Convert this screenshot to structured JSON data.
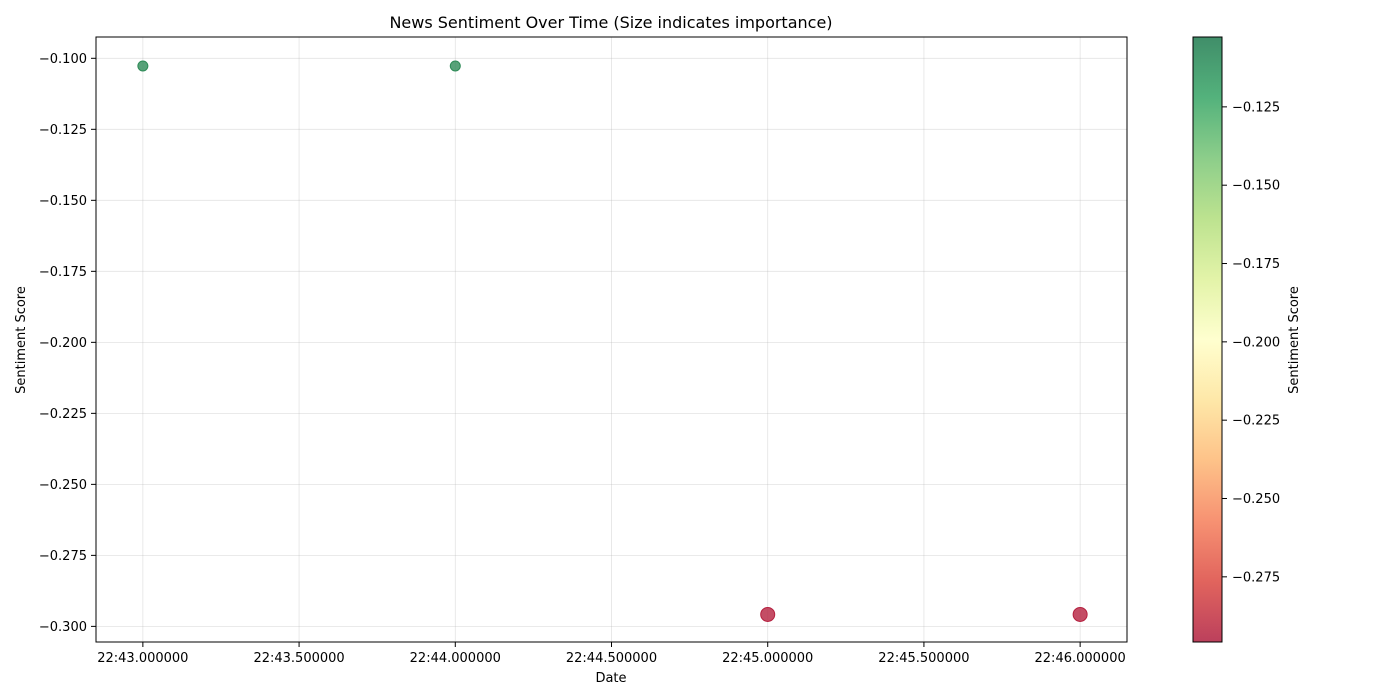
{
  "chart_data": {
    "type": "scatter",
    "title": "News Sentiment Over Time (Size indicates importance)",
    "xlabel": "Date",
    "ylabel": "Sentiment Score",
    "x_ticks": [
      "22:43.000000",
      "22:43.500000",
      "22:44.000000",
      "22:44.500000",
      "22:45.000000",
      "22:45.500000",
      "22:46.000000"
    ],
    "x_tick_values": [
      0,
      0.5,
      1,
      1.5,
      2,
      2.5,
      3
    ],
    "xlim": [
      -0.15,
      3.15
    ],
    "y_ticks": [
      "−0.100",
      "−0.125",
      "−0.150",
      "−0.175",
      "−0.200",
      "−0.225",
      "−0.250",
      "−0.275",
      "−0.300"
    ],
    "y_tick_values": [
      -0.1,
      -0.125,
      -0.15,
      -0.175,
      -0.2,
      -0.225,
      -0.25,
      -0.275,
      -0.3
    ],
    "ylim": [
      -0.3055,
      -0.0925
    ],
    "grid": true,
    "points": [
      {
        "x_label": "22:43.000000",
        "x": 0,
        "y": -0.1027,
        "importance": 1,
        "color": "#2e8b57"
      },
      {
        "x_label": "22:44.000000",
        "x": 1,
        "y": -0.1027,
        "importance": 1,
        "color": "#2e8b57"
      },
      {
        "x_label": "22:45.000000",
        "x": 2,
        "y": -0.2958,
        "importance": 1.4,
        "color": "#b5203f"
      },
      {
        "x_label": "22:46.000000",
        "x": 3,
        "y": -0.2958,
        "importance": 1.4,
        "color": "#b5203f"
      }
    ],
    "colorbar": {
      "label": "Sentiment Score",
      "range": [
        -0.2958,
        -0.1027
      ],
      "ticks": [
        "−0.125",
        "−0.150",
        "−0.175",
        "−0.200",
        "−0.225",
        "−0.250",
        "−0.275"
      ],
      "tick_values": [
        -0.125,
        -0.15,
        -0.175,
        -0.2,
        -0.225,
        -0.25,
        -0.275
      ],
      "colormap": [
        "#a50026",
        "#d73027",
        "#f46d43",
        "#fdae61",
        "#fee08b",
        "#ffffbf",
        "#d9ef8b",
        "#a6d96a",
        "#66bd63",
        "#1a9850",
        "#006837"
      ]
    }
  }
}
